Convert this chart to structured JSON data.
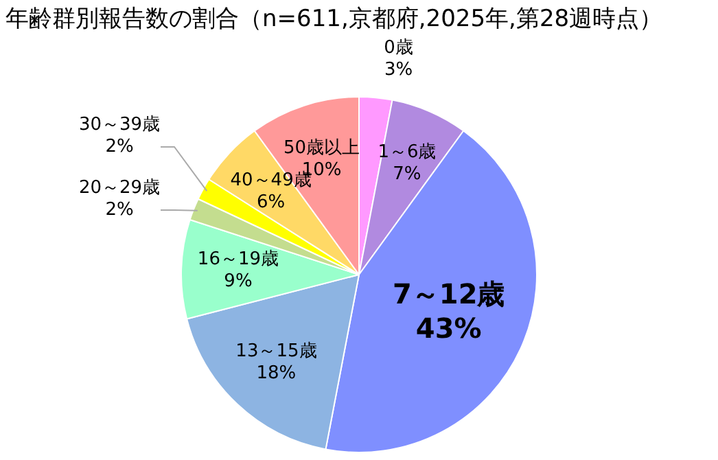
{
  "chart_data": {
    "type": "pie",
    "title": "年齢群別報告数の割合（n=611,京都府,2025年,第28週時点）",
    "categories": [
      "0歳",
      "1～6歳",
      "7～12歳",
      "13～15歳",
      "16～19歳",
      "20～29歳",
      "30～39歳",
      "40～49歳",
      "50歳以上"
    ],
    "values": [
      3,
      7,
      43,
      18,
      9,
      2,
      2,
      6,
      10
    ],
    "value_labels": [
      "3%",
      "7%",
      "43%",
      "18%",
      "9%",
      "2%",
      "2%",
      "6%",
      "10%"
    ],
    "colors": [
      "#ff99ff",
      "#b18ae0",
      "#7f8fff",
      "#8db4e2",
      "#99ffcc",
      "#c4dd8f",
      "#ffff00",
      "#ffd966",
      "#ff9999"
    ],
    "legend": false
  }
}
